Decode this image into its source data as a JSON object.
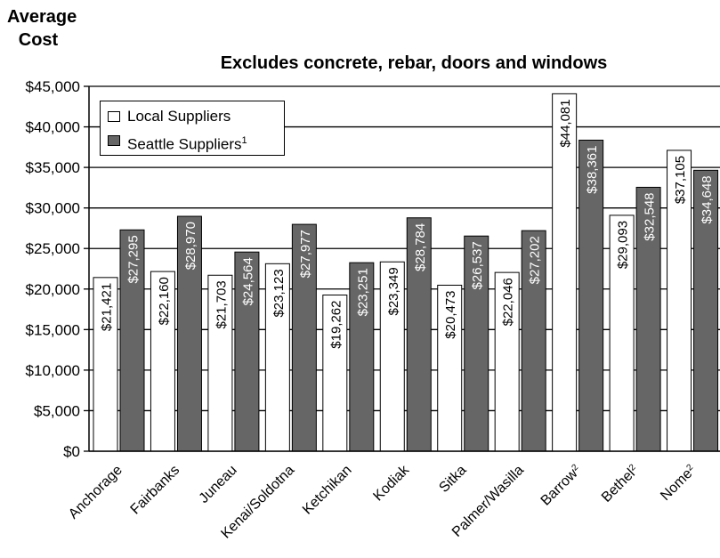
{
  "chart_data": {
    "type": "bar",
    "title": "Excludes concrete, rebar, doors and windows",
    "ylabel": "Average Cost",
    "ylim": [
      0,
      45000
    ],
    "yticks": [
      "$0",
      "$5,000",
      "$10,000",
      "$15,000",
      "$20,000",
      "$25,000",
      "$30,000",
      "$35,000",
      "$40,000",
      "$45,000"
    ],
    "categories": [
      "Anchorage",
      "Fairbanks",
      "Juneau",
      "Kenai/Soldotna",
      "Ketchikan",
      "Kodiak",
      "Sitka",
      "Palmer/Wasilla",
      "Barrow",
      "Bethel",
      "Nome"
    ],
    "category_superscripts": [
      "",
      "",
      "",
      "",
      "",
      "",
      "",
      "",
      "2",
      "2",
      "2"
    ],
    "series": [
      {
        "name": "Local Suppliers",
        "color": "#ffffff",
        "values": [
          21421,
          22160,
          21703,
          23123,
          19262,
          23349,
          20473,
          22046,
          44081,
          29093,
          37105
        ],
        "labels": [
          "$21,421",
          "$22,160",
          "$21,703",
          "$23,123",
          "$19,262",
          "$23,349",
          "$20,473",
          "$22,046",
          "$44,081",
          "$29,093",
          "$37,105"
        ]
      },
      {
        "name": "Seattle Suppliers",
        "name_superscript": "1",
        "color": "#666666",
        "values": [
          27295,
          28970,
          24564,
          27977,
          23251,
          28784,
          26537,
          27202,
          38361,
          32548,
          34648
        ],
        "labels": [
          "$27,295",
          "$28,970",
          "$24,564",
          "$27,977",
          "$23,251",
          "$28,784",
          "$26,537",
          "$27,202",
          "$38,361",
          "$32,548",
          "$34,648"
        ]
      }
    ],
    "legend_position": "top-left",
    "grid": true
  }
}
